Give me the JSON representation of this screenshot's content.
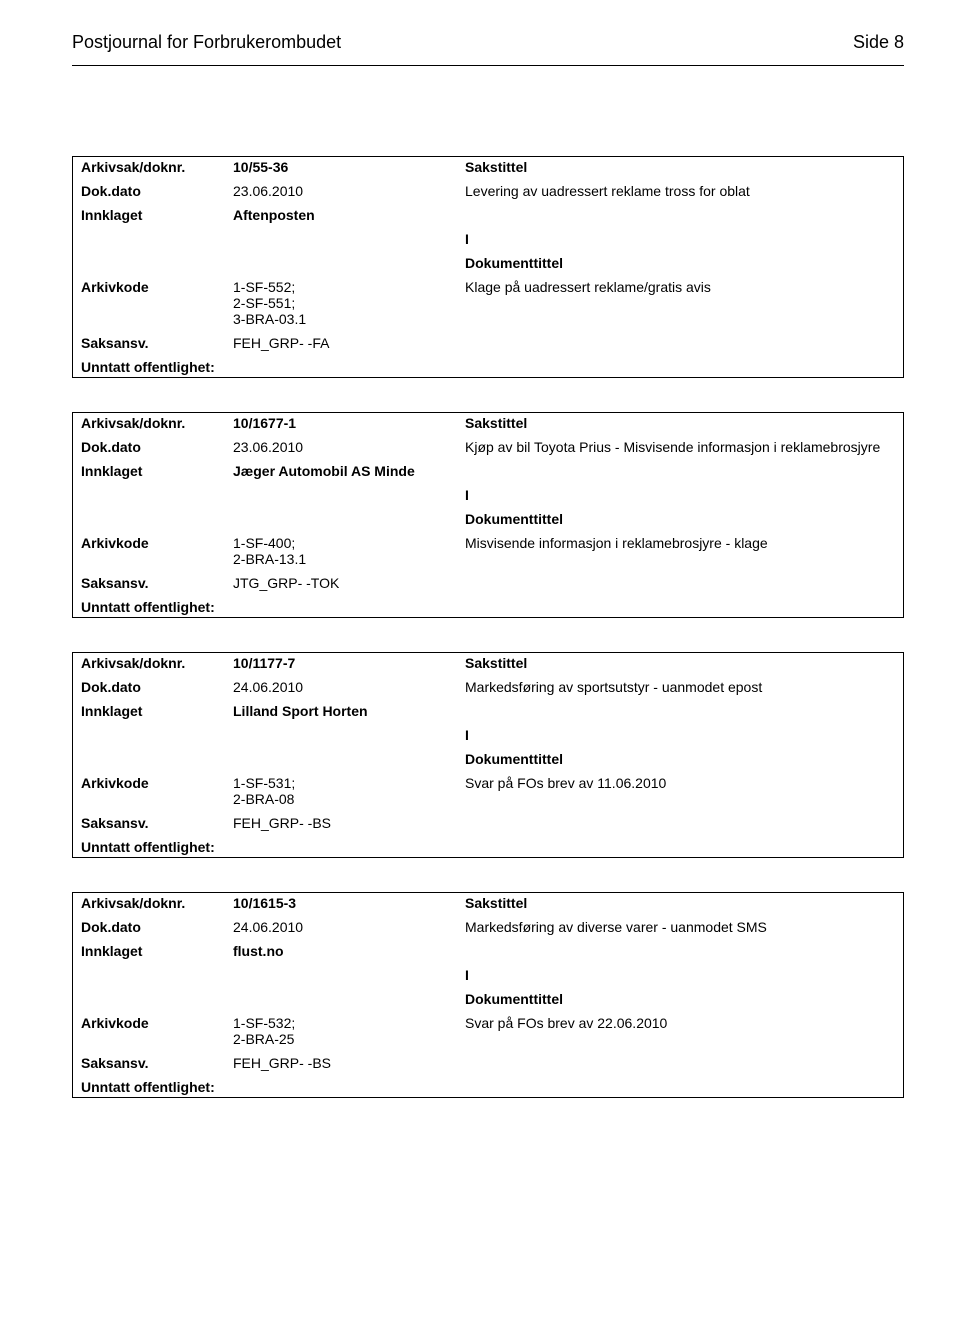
{
  "header": {
    "title": "Postjournal for Forbrukerombudet",
    "side": "Side 8"
  },
  "labels": {
    "arkivsak": "Arkivsak/doknr.",
    "dokdato": "Dok.dato",
    "innklaget": "Innklaget",
    "arkivkode": "Arkivkode",
    "saksansv": "Saksansv.",
    "unntatt": "Unntatt offentlighet:",
    "sakstittel": "Sakstittel",
    "dokumenttittel": "Dokumenttittel",
    "I": "I"
  },
  "records": [
    {
      "arkivsak": "10/55-36",
      "dokdato": "23.06.2010",
      "sakstittel_text": "Levering av uadressert reklame tross for oblat",
      "innklaget": "Aftenposten",
      "arkivkode": "1-SF-552;\n2-SF-551;\n3-BRA-03.1",
      "dokumenttittel_text": "Klage på uadressert reklame/gratis avis",
      "saksansv": "FEH_GRP- -FA"
    },
    {
      "arkivsak": "10/1677-1",
      "dokdato": "23.06.2010",
      "sakstittel_text": "Kjøp av bil Toyota Prius - Misvisende informasjon i reklamebrosjyre",
      "innklaget": "Jæger Automobil AS Minde",
      "arkivkode": "1-SF-400;\n2-BRA-13.1",
      "dokumenttittel_text": "Misvisende informasjon i reklamebrosjyre - klage",
      "saksansv": "JTG_GRP- -TOK"
    },
    {
      "arkivsak": "10/1177-7",
      "dokdato": "24.06.2010",
      "sakstittel_text": "Markedsføring av sportsutstyr - uanmodet epost",
      "innklaget": "Lilland Sport Horten",
      "arkivkode": "1-SF-531;\n2-BRA-08",
      "dokumenttittel_text": "Svar på FOs brev av 11.06.2010",
      "saksansv": "FEH_GRP- -BS"
    },
    {
      "arkivsak": "10/1615-3",
      "dokdato": "24.06.2010",
      "sakstittel_text": "Markedsføring av diverse varer - uanmodet SMS",
      "innklaget": "flust.no",
      "arkivkode": "1-SF-532;\n2-BRA-25",
      "dokumenttittel_text": "Svar på FOs brev av 22.06.2010",
      "saksansv": "FEH_GRP- -BS"
    }
  ]
}
